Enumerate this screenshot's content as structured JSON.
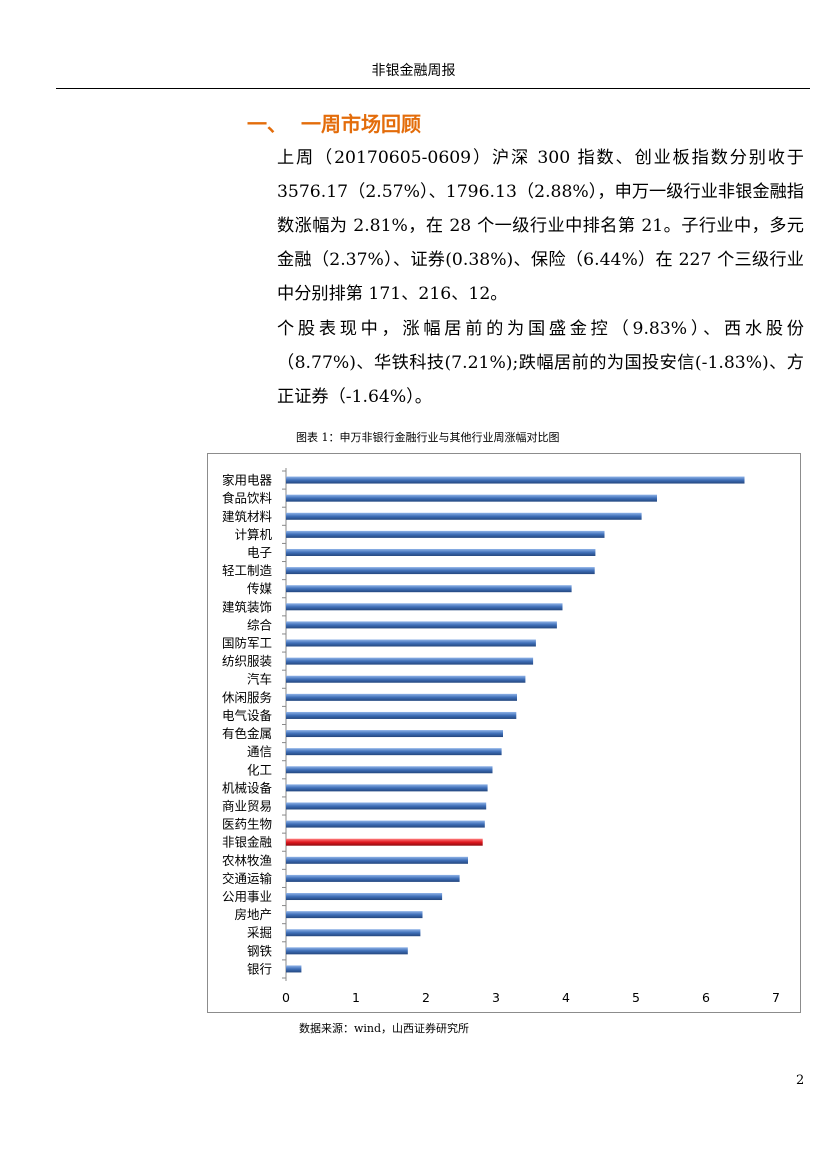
{
  "header": {
    "title": "非银金融周报"
  },
  "section": {
    "number": "一、",
    "title": "一周市场回顾"
  },
  "paragraphs": [
    "上周（20170605-0609）沪深 300 指数、创业板指数分别收于 3576.17（2.57%）、1796.13（2.88%），申万一级行业非银金融指数涨幅为 2.81%，在 28 个一级行业中排名第 21。子行业中，多元金融（2.37%）、证券(0.38%)、保险（6.44%）在 227 个三级行业中分别排第 171、216、12。",
    "个股表现中，涨幅居前的为国盛金控（9.83%）、西水股份（8.77%)、华铁科技(7.21%);跌幅居前的为国投安信(-1.83%)、方正证券（-1.64%）。"
  ],
  "figure": {
    "caption": "图表 1：申万非银行金融行业与其他行业周涨幅对比图",
    "source": "数据来源：wind，山西证券研究所"
  },
  "page_number": "2",
  "colors": {
    "bar": "#3f6fb8",
    "highlight": "#e0181f",
    "title": "#e36c0a"
  },
  "chart_data": {
    "type": "bar",
    "orientation": "horizontal",
    "categories": [
      "家用电器",
      "食品饮料",
      "建筑材料",
      "计算机",
      "电子",
      "轻工制造",
      "传媒",
      "建筑装饰",
      "综合",
      "国防军工",
      "纺织服装",
      "汽车",
      "休闲服务",
      "电气设备",
      "有色金属",
      "通信",
      "化工",
      "机械设备",
      "商业贸易",
      "医药生物",
      "非银金融",
      "农林牧渔",
      "交通运输",
      "公用事业",
      "房地产",
      "采掘",
      "钢铁",
      "银行"
    ],
    "values": [
      6.55,
      5.3,
      5.08,
      4.55,
      4.42,
      4.41,
      4.08,
      3.95,
      3.87,
      3.57,
      3.53,
      3.42,
      3.3,
      3.29,
      3.1,
      3.08,
      2.95,
      2.88,
      2.86,
      2.84,
      2.81,
      2.6,
      2.48,
      2.23,
      1.95,
      1.92,
      1.74,
      0.22
    ],
    "highlight": "非银金融",
    "xlim": [
      0,
      7
    ],
    "xticks": [
      "0",
      "1",
      "2",
      "3",
      "4",
      "5",
      "6",
      "7"
    ],
    "grid": false
  }
}
